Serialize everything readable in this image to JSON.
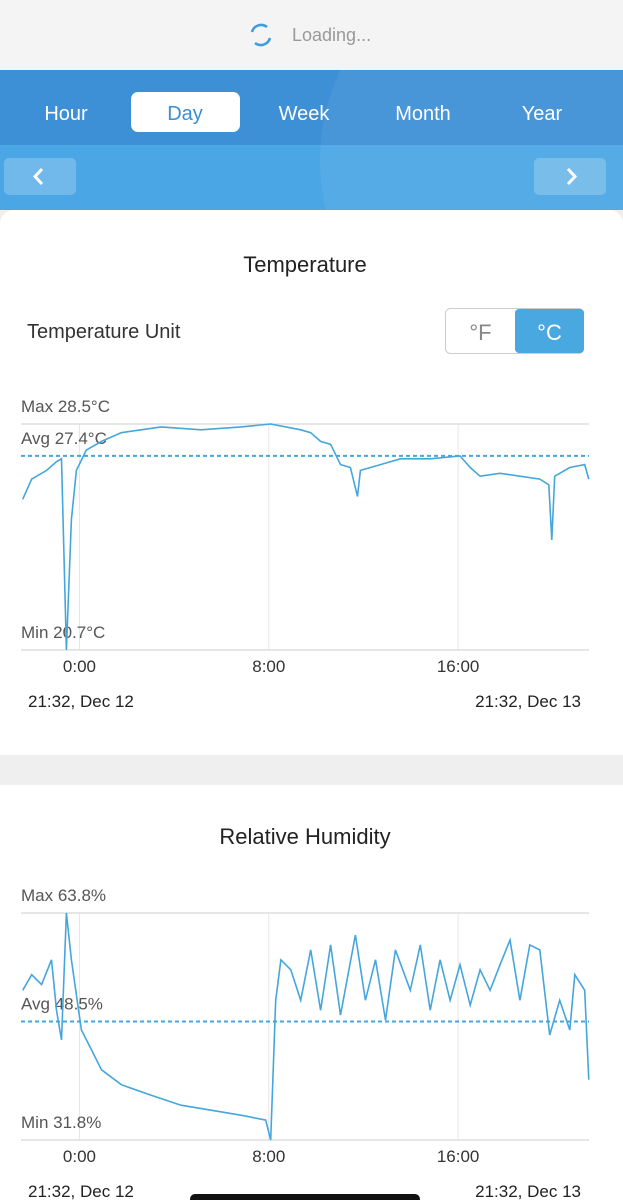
{
  "status": {
    "text": "Loading..."
  },
  "tabs": [
    {
      "label": "Hour",
      "selected": false
    },
    {
      "label": "Day",
      "selected": true
    },
    {
      "label": "Week",
      "selected": false
    },
    {
      "label": "Month",
      "selected": false
    },
    {
      "label": "Year",
      "selected": false
    }
  ],
  "unit_selector": {
    "label": "Temperature Unit",
    "options": [
      {
        "label": "°F",
        "selected": false
      },
      {
        "label": "°C",
        "selected": true
      }
    ]
  },
  "chart_data": [
    {
      "type": "line",
      "title": "Temperature",
      "color": "#45a6dc",
      "x": [
        -2.4,
        -2.02,
        -1.39,
        -0.97,
        -0.76,
        -0.55,
        -0.34,
        -0.13,
        0.29,
        0.93,
        1.77,
        2.61,
        3.45,
        5.14,
        6.82,
        8.08,
        9.35,
        9.77,
        10.19,
        10.61,
        11.03,
        11.45,
        11.75,
        11.87,
        12.72,
        13.56,
        14.82,
        16.08,
        16.51,
        16.93,
        17.77,
        18.61,
        19.45,
        19.83,
        19.96,
        20.08,
        20.72,
        21.35,
        21.52
      ],
      "values": [
        25.9,
        26.6,
        26.9,
        27.2,
        27.3,
        20.7,
        25.2,
        26.9,
        27.6,
        27.9,
        28.2,
        28.3,
        28.4,
        28.3,
        28.4,
        28.5,
        28.3,
        28.2,
        27.9,
        27.8,
        27.1,
        27.0,
        26.0,
        26.9,
        27.1,
        27.3,
        27.3,
        27.4,
        27.0,
        26.7,
        26.8,
        26.7,
        26.6,
        26.4,
        24.5,
        26.7,
        27.0,
        27.1,
        26.6
      ],
      "xlim": [
        -2.47,
        21.53
      ],
      "xticks": [
        {
          "value": 0,
          "label": "0:00"
        },
        {
          "value": 8,
          "label": "8:00"
        },
        {
          "value": 16,
          "label": "16:00"
        }
      ],
      "ylim": [
        20.7,
        28.5
      ],
      "yticks": [
        {
          "value": 28.5,
          "label": "Max 28.5°C"
        },
        {
          "value": 27.4,
          "label": "Avg 27.4°C"
        },
        {
          "value": 20.7,
          "label": "Min 20.7°C"
        }
      ],
      "x_start_label": "21:32,  Dec 12",
      "x_end_label": "21:32,  Dec 13"
    },
    {
      "type": "line",
      "title": "Relative Humidity",
      "color": "#45a6dc",
      "x": [
        -2.4,
        -2.02,
        -1.6,
        -1.18,
        -0.97,
        -0.76,
        -0.55,
        -0.34,
        0.08,
        0.51,
        0.93,
        1.77,
        3.03,
        4.29,
        5.56,
        6.82,
        7.87,
        8.08,
        8.29,
        8.51,
        8.93,
        9.35,
        9.77,
        10.19,
        10.61,
        11.03,
        11.66,
        12.08,
        12.51,
        12.93,
        13.35,
        13.98,
        14.4,
        14.82,
        15.24,
        15.66,
        16.08,
        16.51,
        16.93,
        17.35,
        17.77,
        18.19,
        18.61,
        19.03,
        19.45,
        19.87,
        20.29,
        20.72,
        20.93,
        21.35,
        21.52
      ],
      "values": [
        52.9,
        55.1,
        53.7,
        57.2,
        50.1,
        45.9,
        63.8,
        57.2,
        47.3,
        44.5,
        41.7,
        39.6,
        38.1,
        36.7,
        36.0,
        35.3,
        34.6,
        31.8,
        51.5,
        57.2,
        55.8,
        51.5,
        58.6,
        50.1,
        59.3,
        49.4,
        60.7,
        51.5,
        57.2,
        48.7,
        58.6,
        52.9,
        59.3,
        50.1,
        57.2,
        51.5,
        56.5,
        50.8,
        55.8,
        52.9,
        56.5,
        60.0,
        51.5,
        59.3,
        58.6,
        46.6,
        51.5,
        47.3,
        55.1,
        52.9,
        40.3
      ],
      "xlim": [
        -2.47,
        21.53
      ],
      "xticks": [
        {
          "value": 0,
          "label": "0:00"
        },
        {
          "value": 8,
          "label": "8:00"
        },
        {
          "value": 16,
          "label": "16:00"
        }
      ],
      "ylim": [
        31.8,
        63.8
      ],
      "yticks": [
        {
          "value": 63.8,
          "label": "Max 63.8%"
        },
        {
          "value": 48.5,
          "label": "Avg 48.5%"
        },
        {
          "value": 31.8,
          "label": "Min 31.8%"
        }
      ],
      "x_start_label": "21:32,  Dec 12",
      "x_end_label": "21:32,  Dec 13"
    }
  ]
}
